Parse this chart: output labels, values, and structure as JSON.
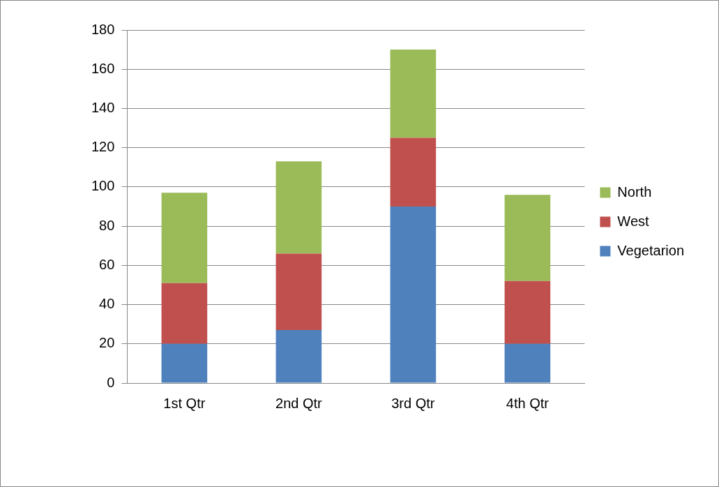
{
  "chart_data": {
    "type": "bar",
    "stacked": true,
    "categories": [
      "1st Qtr",
      "2nd Qtr",
      "3rd Qtr",
      "4th Qtr"
    ],
    "series": [
      {
        "name": "Vegetarion",
        "color": "#4f81bd",
        "values": [
          20,
          27,
          90,
          20
        ]
      },
      {
        "name": "West",
        "color": "#c0504d",
        "values": [
          31,
          39,
          35,
          32
        ]
      },
      {
        "name": "North",
        "color": "#9bbb59",
        "values": [
          46,
          47,
          45,
          44
        ]
      }
    ],
    "ylim": [
      0,
      180
    ],
    "yticks": [
      0,
      20,
      40,
      60,
      80,
      100,
      120,
      140,
      160,
      180
    ],
    "grid": "y",
    "legend": "right"
  }
}
